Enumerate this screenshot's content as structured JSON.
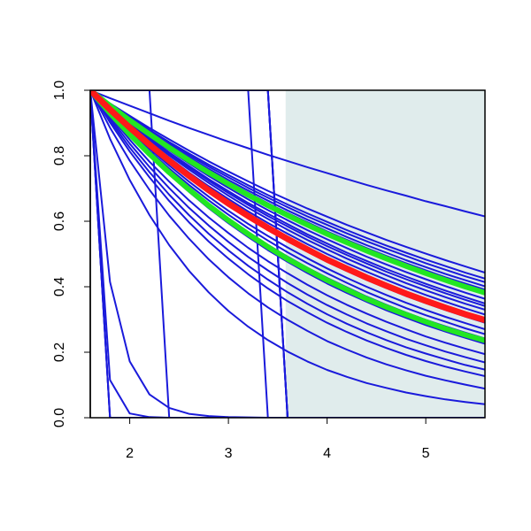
{
  "chart_data": {
    "type": "line",
    "title": "",
    "xlabel": "",
    "ylabel": "",
    "xlim": [
      1.6,
      5.6
    ],
    "ylim": [
      0.0,
      1.0
    ],
    "x_ticks": [
      2,
      3,
      4,
      5
    ],
    "x_tick_labels": [
      "2",
      "3",
      "4",
      "5"
    ],
    "y_ticks": [
      0.0,
      0.2,
      0.4,
      0.6,
      0.8,
      1.0
    ],
    "y_tick_labels": [
      "0.0",
      "0.2",
      "0.4",
      "0.6",
      "0.8",
      "1.0"
    ],
    "grid": false,
    "legend": "none",
    "shaded_region": {
      "x": [
        3.58,
        5.6
      ],
      "color": "#e0ecec"
    },
    "colors": {
      "band": "#1a1adb",
      "median": "#ff1a1a",
      "interval": "#22e622",
      "axis": "#000000",
      "frame": "#000000"
    },
    "curve_x": [
      1.6,
      1.8,
      2.0,
      2.2,
      2.4,
      2.6,
      2.8,
      3.0,
      3.2,
      3.4,
      3.6,
      3.8,
      4.0,
      4.2,
      4.4,
      4.6,
      4.8,
      5.0,
      5.2,
      5.4,
      5.6
    ],
    "series": [
      {
        "role": "band",
        "values": [
          1.0,
          0.976,
          0.953,
          0.93,
          0.907,
          0.885,
          0.864,
          0.843,
          0.823,
          0.803,
          0.784,
          0.765,
          0.747,
          0.729,
          0.711,
          0.694,
          0.678,
          0.661,
          0.646,
          0.63,
          0.615
        ]
      },
      {
        "role": "band",
        "values": [
          1.0,
          0.96,
          0.922,
          0.885,
          0.85,
          0.816,
          0.783,
          0.752,
          0.722,
          0.693,
          0.666,
          0.639,
          0.614,
          0.589,
          0.566,
          0.543,
          0.522,
          0.501,
          0.481,
          0.462,
          0.443
        ]
      },
      {
        "role": "band",
        "values": [
          1.0,
          0.958,
          0.918,
          0.879,
          0.842,
          0.807,
          0.773,
          0.741,
          0.71,
          0.68,
          0.651,
          0.624,
          0.598,
          0.573,
          0.549,
          0.526,
          0.504,
          0.483,
          0.463,
          0.443,
          0.425
        ]
      },
      {
        "role": "band",
        "values": [
          1.0,
          0.957,
          0.915,
          0.876,
          0.838,
          0.802,
          0.767,
          0.734,
          0.702,
          0.672,
          0.643,
          0.615,
          0.589,
          0.563,
          0.539,
          0.516,
          0.494,
          0.472,
          0.452,
          0.432,
          0.414
        ]
      },
      {
        "role": "band",
        "values": [
          1.0,
          0.955,
          0.913,
          0.872,
          0.833,
          0.796,
          0.76,
          0.726,
          0.694,
          0.663,
          0.633,
          0.605,
          0.578,
          0.552,
          0.527,
          0.504,
          0.481,
          0.46,
          0.439,
          0.42,
          0.401
        ]
      },
      {
        "role": "band",
        "values": [
          1.0,
          0.954,
          0.91,
          0.868,
          0.829,
          0.791,
          0.755,
          0.72,
          0.687,
          0.655,
          0.625,
          0.597,
          0.569,
          0.543,
          0.518,
          0.494,
          0.472,
          0.45,
          0.429,
          0.41,
          0.391
        ]
      },
      {
        "role": "band",
        "values": [
          1.0,
          0.952,
          0.907,
          0.864,
          0.823,
          0.784,
          0.747,
          0.711,
          0.677,
          0.645,
          0.614,
          0.585,
          0.557,
          0.531,
          0.505,
          0.481,
          0.458,
          0.437,
          0.416,
          0.396,
          0.377
        ]
      },
      {
        "role": "band",
        "values": [
          1.0,
          0.951,
          0.904,
          0.859,
          0.817,
          0.777,
          0.738,
          0.702,
          0.667,
          0.634,
          0.603,
          0.573,
          0.545,
          0.518,
          0.492,
          0.468,
          0.445,
          0.423,
          0.402,
          0.382,
          0.363
        ]
      },
      {
        "role": "band",
        "values": [
          1.0,
          0.949,
          0.9,
          0.854,
          0.81,
          0.769,
          0.729,
          0.692,
          0.656,
          0.623,
          0.591,
          0.56,
          0.532,
          0.504,
          0.479,
          0.454,
          0.431,
          0.409,
          0.388,
          0.368,
          0.349
        ]
      },
      {
        "role": "band",
        "values": [
          1.0,
          0.948,
          0.898,
          0.851,
          0.806,
          0.764,
          0.724,
          0.686,
          0.65,
          0.616,
          0.584,
          0.553,
          0.524,
          0.497,
          0.471,
          0.446,
          0.423,
          0.401,
          0.38,
          0.36,
          0.341
        ]
      },
      {
        "role": "band",
        "values": [
          1.0,
          0.946,
          0.895,
          0.847,
          0.801,
          0.758,
          0.717,
          0.678,
          0.641,
          0.607,
          0.574,
          0.543,
          0.514,
          0.486,
          0.46,
          0.435,
          0.411,
          0.389,
          0.368,
          0.348,
          0.33
        ]
      },
      {
        "role": "band",
        "values": [
          1.0,
          0.944,
          0.891,
          0.841,
          0.794,
          0.749,
          0.707,
          0.668,
          0.63,
          0.595,
          0.562,
          0.53,
          0.5,
          0.472,
          0.446,
          0.421,
          0.397,
          0.375,
          0.354,
          0.334,
          0.315
        ]
      },
      {
        "role": "band",
        "values": [
          1.0,
          0.94,
          0.884,
          0.831,
          0.781,
          0.734,
          0.69,
          0.649,
          0.61,
          0.573,
          0.539,
          0.507,
          0.476,
          0.448,
          0.421,
          0.396,
          0.372,
          0.35,
          0.329,
          0.309,
          0.29
        ]
      },
      {
        "role": "band",
        "values": [
          1.0,
          0.937,
          0.877,
          0.822,
          0.77,
          0.721,
          0.675,
          0.632,
          0.592,
          0.555,
          0.52,
          0.487,
          0.456,
          0.427,
          0.4,
          0.375,
          0.351,
          0.329,
          0.308,
          0.289,
          0.27
        ]
      },
      {
        "role": "band",
        "values": [
          1.0,
          0.934,
          0.872,
          0.815,
          0.761,
          0.711,
          0.664,
          0.62,
          0.579,
          0.541,
          0.505,
          0.472,
          0.441,
          0.412,
          0.384,
          0.359,
          0.335,
          0.313,
          0.293,
          0.273,
          0.255
        ]
      },
      {
        "role": "band",
        "values": [
          1.0,
          0.931,
          0.868,
          0.808,
          0.753,
          0.701,
          0.653,
          0.609,
          0.567,
          0.528,
          0.492,
          0.458,
          0.427,
          0.398,
          0.37,
          0.345,
          0.321,
          0.299,
          0.279,
          0.26,
          0.242
        ]
      },
      {
        "role": "band",
        "values": [
          1.0,
          0.928,
          0.862,
          0.8,
          0.743,
          0.69,
          0.64,
          0.594,
          0.552,
          0.512,
          0.476,
          0.442,
          0.41,
          0.381,
          0.354,
          0.328,
          0.305,
          0.283,
          0.263,
          0.244,
          0.226
        ]
      },
      {
        "role": "band",
        "values": [
          1.0,
          0.921,
          0.849,
          0.782,
          0.721,
          0.664,
          0.612,
          0.564,
          0.519,
          0.478,
          0.441,
          0.406,
          0.374,
          0.345,
          0.318,
          0.293,
          0.27,
          0.248,
          0.229,
          0.211,
          0.194
        ]
      },
      {
        "role": "band",
        "values": [
          1.0,
          0.915,
          0.837,
          0.766,
          0.701,
          0.641,
          0.587,
          0.537,
          0.491,
          0.45,
          0.411,
          0.376,
          0.344,
          0.315,
          0.288,
          0.264,
          0.241,
          0.221,
          0.202,
          0.185,
          0.169
        ]
      },
      {
        "role": "band",
        "values": [
          1.0,
          0.909,
          0.825,
          0.75,
          0.681,
          0.619,
          0.562,
          0.511,
          0.464,
          0.422,
          0.383,
          0.348,
          0.316,
          0.287,
          0.261,
          0.237,
          0.215,
          0.196,
          0.178,
          0.161,
          0.147
        ]
      },
      {
        "role": "band",
        "values": [
          1.0,
          0.902,
          0.813,
          0.734,
          0.662,
          0.597,
          0.538,
          0.486,
          0.438,
          0.395,
          0.356,
          0.322,
          0.29,
          0.262,
          0.236,
          0.213,
          0.192,
          0.173,
          0.156,
          0.141,
          0.127
        ]
      },
      {
        "role": "band",
        "values": [
          1.0,
          0.886,
          0.785,
          0.696,
          0.617,
          0.547,
          0.484,
          0.429,
          0.38,
          0.337,
          0.299,
          0.265,
          0.234,
          0.208,
          0.184,
          0.163,
          0.145,
          0.128,
          0.114,
          0.101,
          0.089
        ]
      },
      {
        "role": "band",
        "values": [
          1.0,
          0.852,
          0.726,
          0.619,
          0.527,
          0.449,
          0.383,
          0.326,
          0.278,
          0.237,
          0.202,
          0.172,
          0.146,
          0.125,
          0.106,
          0.091,
          0.077,
          0.066,
          0.056,
          0.048,
          0.041
        ]
      },
      {
        "role": "band",
        "values": [
          1.0,
          0.415,
          0.172,
          0.071,
          0.03,
          0.012,
          0.005,
          0.002,
          0.001,
          0.0,
          0.0,
          0.0,
          0.0,
          0.0,
          0.0,
          0.0,
          0.0,
          0.0,
          0.0,
          0.0,
          0.0
        ]
      },
      {
        "role": "band",
        "values": [
          1.0,
          0.115,
          0.013,
          0.002,
          0.0,
          0.0,
          0.0,
          0.0,
          0.0,
          0.0,
          0.0,
          0.0,
          0.0,
          0.0,
          0.0,
          0.0,
          0.0,
          0.0,
          0.0,
          0.0,
          0.0
        ]
      },
      {
        "role": "band",
        "values": [
          1.0,
          0.0,
          0.0,
          0.0,
          0.0,
          0.0,
          0.0,
          0.0,
          0.0,
          0.0,
          0.0,
          0.0,
          0.0,
          0.0,
          0.0,
          0.0,
          0.0,
          0.0,
          0.0,
          0.0,
          0.0
        ]
      },
      {
        "role": "band",
        "values": [
          1.0,
          0.0,
          0.0,
          0.0,
          0.0,
          0.0,
          0.0,
          0.0,
          0.0,
          0.0,
          0.0,
          0.0,
          0.0,
          0.0,
          0.0,
          0.0,
          0.0,
          0.0,
          0.0,
          0.0,
          0.0
        ]
      },
      {
        "role": "band",
        "values": [
          1.0,
          0.0,
          0.0,
          0.0,
          0.0,
          0.0,
          0.0,
          0.0,
          0.0,
          0.0,
          0.0,
          0.0,
          0.0,
          0.0,
          0.0,
          0.0,
          0.0,
          0.0,
          0.0,
          0.0,
          0.0
        ]
      },
      {
        "role": "band",
        "values": [
          1.0,
          1.0,
          1.0,
          1.0,
          0.0,
          0.0,
          0.0,
          0.0,
          0.0,
          0.0,
          0.0,
          0.0,
          0.0,
          0.0,
          0.0,
          0.0,
          0.0,
          0.0,
          0.0,
          0.0,
          0.0
        ]
      },
      {
        "role": "band",
        "values": [
          1.0,
          1.0,
          1.0,
          1.0,
          1.0,
          1.0,
          1.0,
          1.0,
          1.0,
          0.0,
          0.0,
          0.0,
          0.0,
          0.0,
          0.0,
          0.0,
          0.0,
          0.0,
          0.0,
          0.0,
          0.0
        ]
      },
      {
        "role": "band",
        "values": [
          1.0,
          1.0,
          1.0,
          1.0,
          1.0,
          1.0,
          1.0,
          1.0,
          1.0,
          1.0,
          0.0,
          0.0,
          0.0,
          0.0,
          0.0,
          0.0,
          0.0,
          0.0,
          0.0,
          0.0,
          0.0
        ]
      },
      {
        "role": "band",
        "values": [
          1.0,
          1.0,
          1.0,
          1.0,
          1.0,
          1.0,
          1.0,
          1.0,
          1.0,
          1.0,
          0.0,
          0.0,
          0.0,
          0.0,
          0.0,
          0.0,
          0.0,
          0.0,
          0.0,
          0.0,
          0.0
        ]
      },
      {
        "role": "band",
        "values": [
          1.0,
          1.0,
          1.0,
          1.0,
          1.0,
          1.0,
          1.0,
          1.0,
          1.0,
          1.0,
          0.0,
          0.0,
          0.0,
          0.0,
          0.0,
          0.0,
          0.0,
          0.0,
          0.0,
          0.0,
          0.0
        ]
      },
      {
        "role": "band",
        "values": [
          1.0,
          1.0,
          1.0,
          1.0,
          1.0,
          1.0,
          1.0,
          1.0,
          1.0,
          1.0,
          0.0,
          0.0,
          0.0,
          0.0,
          0.0,
          0.0,
          0.0,
          0.0,
          0.0,
          0.0,
          0.0
        ]
      },
      {
        "role": "interval",
        "values": [
          1.0,
          0.953,
          0.908,
          0.866,
          0.825,
          0.786,
          0.749,
          0.714,
          0.68,
          0.648,
          0.618,
          0.589,
          0.561,
          0.535,
          0.51,
          0.486,
          0.463,
          0.441,
          0.42,
          0.4,
          0.382
        ]
      },
      {
        "role": "interval",
        "values": [
          1.0,
          0.93,
          0.865,
          0.805,
          0.749,
          0.697,
          0.648,
          0.603,
          0.561,
          0.522,
          0.485,
          0.452,
          0.42,
          0.391,
          0.363,
          0.338,
          0.315,
          0.293,
          0.272,
          0.253,
          0.236
        ]
      },
      {
        "role": "median",
        "values": [
          1.0,
          0.941,
          0.886,
          0.834,
          0.785,
          0.739,
          0.695,
          0.654,
          0.616,
          0.58,
          0.546,
          0.514,
          0.483,
          0.455,
          0.428,
          0.403,
          0.379,
          0.357,
          0.336,
          0.316,
          0.298
        ]
      }
    ]
  }
}
